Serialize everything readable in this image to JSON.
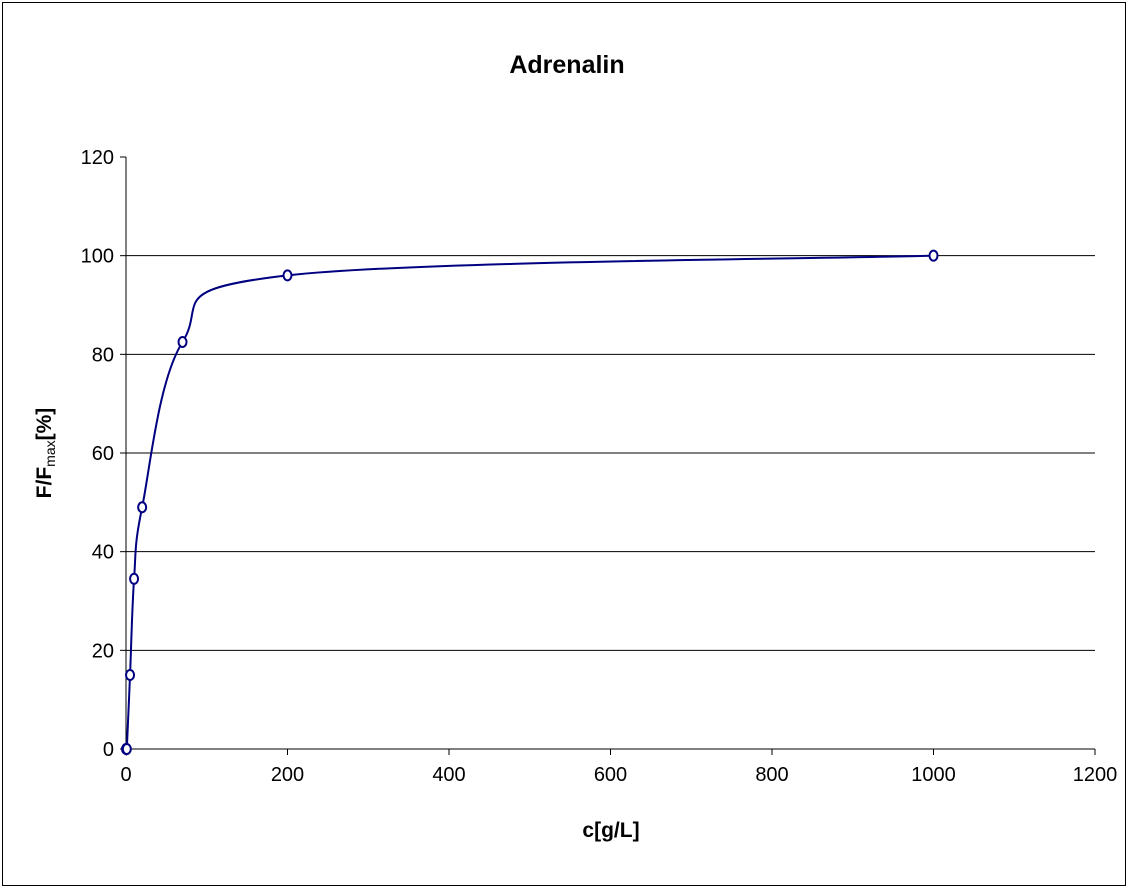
{
  "chart_data": {
    "type": "line",
    "title": "Adrenalin",
    "xlabel": "c[g/L]",
    "ylabel": {
      "main": "F/F",
      "sub": "max",
      "suffix": "[%]"
    },
    "xlim": [
      0,
      1200
    ],
    "ylim": [
      0,
      120
    ],
    "x_ticks": [
      0,
      200,
      400,
      600,
      800,
      1000,
      1200
    ],
    "y_ticks": [
      0,
      20,
      40,
      60,
      80,
      100,
      120
    ],
    "grid": {
      "horizontal": true,
      "vertical": false
    },
    "legend": "none",
    "series": [
      {
        "smooth": true,
        "marker": "circle",
        "color": "#000080",
        "x": [
          0,
          1,
          5,
          10,
          20,
          70,
          200,
          1000
        ],
        "y": [
          0,
          0,
          15,
          34.5,
          49,
          82.5,
          96,
          100
        ]
      }
    ]
  }
}
